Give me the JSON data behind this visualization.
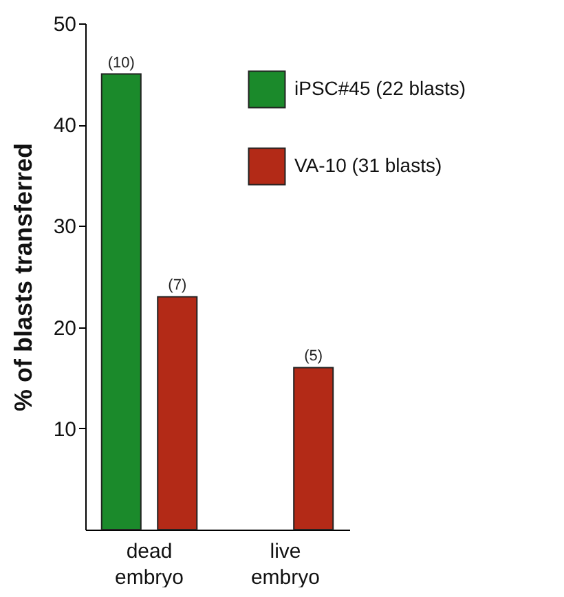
{
  "chart_data": {
    "type": "bar",
    "ylabel": "% of blasts transferred",
    "categories": [
      "dead embryo",
      "live embryo"
    ],
    "series": [
      {
        "name": "iPSC#45 (22 blasts)",
        "color": "#1b8a2b",
        "values": [
          45,
          null
        ]
      },
      {
        "name": "VA-10 (31 blasts)",
        "color": "#b32a17",
        "values": [
          23,
          16
        ]
      }
    ],
    "annotations": [
      "(10)",
      "(7)",
      "(5)"
    ],
    "ylim": [
      0,
      50
    ],
    "yticks": [
      10,
      20,
      30,
      40,
      50
    ],
    "grid": false,
    "legend": "top right"
  }
}
